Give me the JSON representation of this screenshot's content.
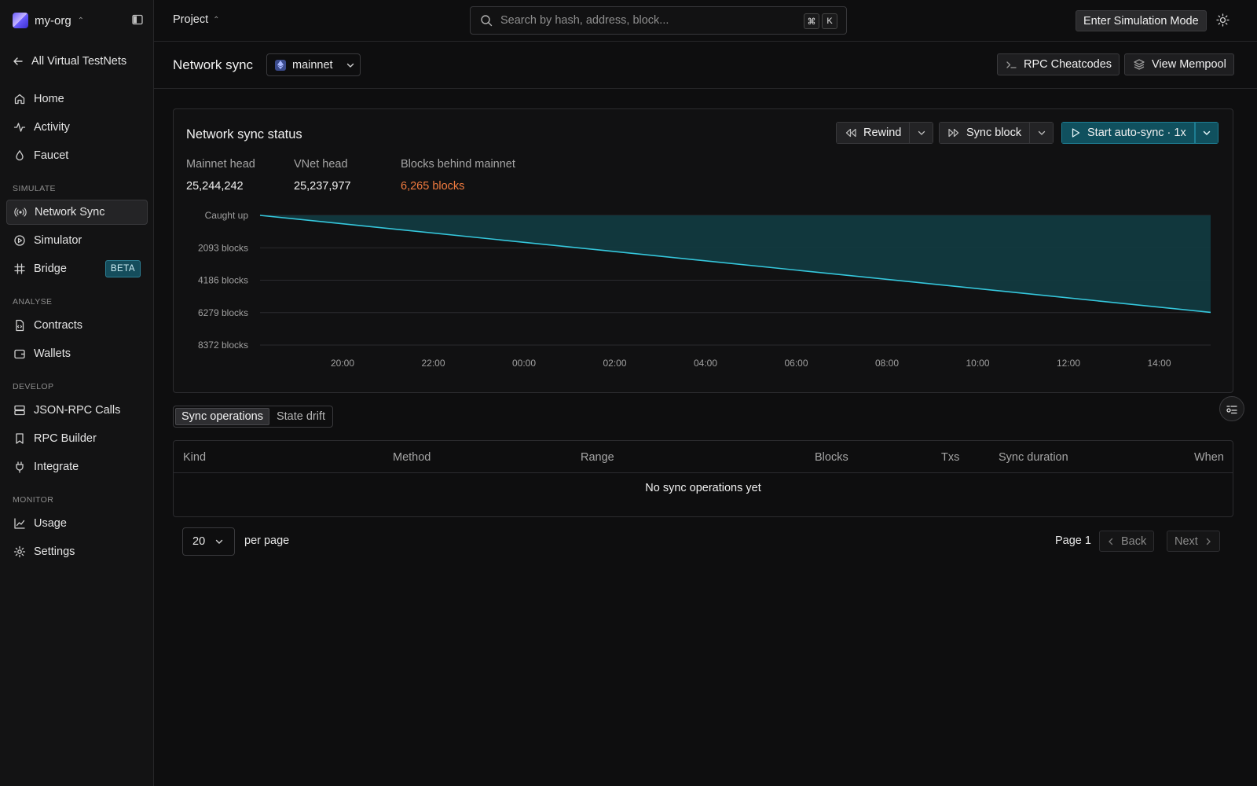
{
  "sidebar": {
    "org_name": "my-org",
    "back_label": "All Virtual TestNets",
    "items_top": [
      {
        "label": "Home",
        "icon": "home-icon"
      },
      {
        "label": "Activity",
        "icon": "activity-icon"
      },
      {
        "label": "Faucet",
        "icon": "droplet-icon"
      }
    ],
    "sections": {
      "simulate": "SIMULATE",
      "analyse": "ANALYSE",
      "develop": "DEVELOP",
      "monitor": "MONITOR"
    },
    "simulate_items": [
      {
        "label": "Network Sync",
        "icon": "radio-icon",
        "active": true
      },
      {
        "label": "Simulator",
        "icon": "play-circle-icon"
      },
      {
        "label": "Bridge",
        "icon": "hash-icon",
        "badge": "BETA"
      }
    ],
    "analyse_items": [
      {
        "label": "Contracts",
        "icon": "file-code-icon"
      },
      {
        "label": "Wallets",
        "icon": "wallet-icon"
      }
    ],
    "develop_items": [
      {
        "label": "JSON-RPC Calls",
        "icon": "server-icon"
      },
      {
        "label": "RPC Builder",
        "icon": "bookmark-icon"
      },
      {
        "label": "Integrate",
        "icon": "plug-icon"
      }
    ],
    "monitor_items": [
      {
        "label": "Usage",
        "icon": "line-chart-icon"
      },
      {
        "label": "Settings",
        "icon": "gear-icon"
      }
    ]
  },
  "topbar": {
    "project_label": "Project",
    "search_placeholder": "Search by hash, address, block...",
    "kbd_cmd": "⌘",
    "kbd_k": "K",
    "simulation_button": "Enter Simulation Mode"
  },
  "header": {
    "title": "Network sync",
    "network": "mainnet",
    "rpc_cheatcodes": "RPC Cheatcodes",
    "view_mempool": "View Mempool"
  },
  "sync_card": {
    "title": "Network sync status",
    "rewind_label": "Rewind",
    "sync_block_label": "Sync block",
    "auto_sync_label": "Start auto-sync · 1x",
    "stats": [
      {
        "label": "Mainnet head",
        "value": "25,244,242"
      },
      {
        "label": "VNet head",
        "value": "25,237,977"
      },
      {
        "label": "Blocks behind mainnet",
        "value": "6,265 blocks"
      }
    ]
  },
  "chart_data": {
    "type": "area",
    "title": "",
    "xlabel": "",
    "ylabel": "",
    "x_ticks": [
      "20:00",
      "22:00",
      "00:00",
      "02:00",
      "04:00",
      "06:00",
      "08:00",
      "10:00",
      "12:00",
      "14:00"
    ],
    "y_ticks": [
      "Caught up",
      "2093 blocks",
      "4186 blocks",
      "6279 blocks",
      "8372 blocks"
    ],
    "y_tick_values": [
      0,
      2093,
      4186,
      6279,
      8372
    ],
    "ylim": [
      0,
      8372
    ],
    "y_inverted": true,
    "series": [
      {
        "values_start": 0,
        "values_end": 6265
      }
    ],
    "line_color": "#35c7dc",
    "fill_color": "#123a40",
    "grid": true
  },
  "tabs": {
    "sync_ops": "Sync operations",
    "state_drift": "State drift"
  },
  "table": {
    "columns": [
      "Kind",
      "Method",
      "Range",
      "Blocks",
      "Txs",
      "Sync duration",
      "When"
    ],
    "empty_text": "No sync operations yet"
  },
  "pagination": {
    "per_page_value": "20",
    "per_page_label": "per page",
    "page_label": "Page 1",
    "back_label": "Back",
    "next_label": "Next"
  },
  "colors": {
    "accent": "#10505e",
    "warning": "#f07b3f",
    "background": "#0e0e0f"
  }
}
